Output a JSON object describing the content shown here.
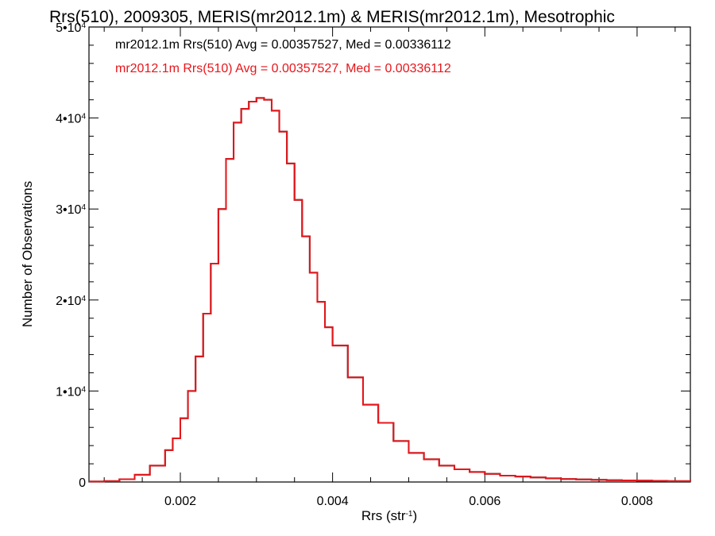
{
  "chart_data": {
    "type": "line",
    "title": "Rrs(510), 2009305, MERIS(mr2012.1m) & MERIS(mr2012.1m), Mesotrophic",
    "xlabel": "Rrs (str",
    "xlabel_sup": "-1",
    "xlabel_end": ")",
    "ylabel": "Number of Observations",
    "xlim": [
      0.0008,
      0.0087
    ],
    "ylim": [
      0,
      50000
    ],
    "x_ticks": [
      0.002,
      0.004,
      0.006,
      0.008
    ],
    "x_tick_labels": [
      "0.002",
      "0.004",
      "0.006",
      "0.008"
    ],
    "y_ticks": [
      0,
      10000,
      20000,
      30000,
      40000,
      50000
    ],
    "y_tick_labels": [
      {
        "base": "0",
        "exp": ""
      },
      {
        "base": "1•10",
        "exp": "4"
      },
      {
        "base": "2•10",
        "exp": "4"
      },
      {
        "base": "3•10",
        "exp": "4"
      },
      {
        "base": "4•10",
        "exp": "4"
      },
      {
        "base": "5•10",
        "exp": "4"
      }
    ],
    "annotations": [
      {
        "text": "mr2012.1m Rrs(510) Avg = 0.00357527, Med = 0.00336112",
        "color": "#000000"
      },
      {
        "text": "mr2012.1m Rrs(510) Avg = 0.00357527, Med = 0.00336112",
        "color": "#e8161b"
      }
    ],
    "series": [
      {
        "style": "step",
        "color": "#000000",
        "x": [
          0.0008,
          0.001,
          0.0012,
          0.0014,
          0.0016,
          0.0018,
          0.0019,
          0.002,
          0.0021,
          0.0022,
          0.0023,
          0.0024,
          0.0025,
          0.0026,
          0.0027,
          0.0028,
          0.0029,
          0.003,
          0.0031,
          0.0032,
          0.0033,
          0.0034,
          0.0035,
          0.0036,
          0.0037,
          0.0038,
          0.0039,
          0.004,
          0.0042,
          0.0044,
          0.0046,
          0.0048,
          0.005,
          0.0052,
          0.0054,
          0.0056,
          0.0058,
          0.006,
          0.0062,
          0.0064,
          0.0066,
          0.0068,
          0.007,
          0.0072,
          0.0074,
          0.0076,
          0.0078,
          0.008,
          0.0082,
          0.0084,
          0.0087
        ],
        "y": [
          50,
          100,
          300,
          800,
          1800,
          3500,
          4800,
          7000,
          10000,
          13800,
          18500,
          24000,
          30000,
          35500,
          39500,
          41000,
          41800,
          42200,
          42000,
          40800,
          38500,
          35000,
          31000,
          27000,
          23000,
          19800,
          17000,
          15000,
          11500,
          8500,
          6500,
          4500,
          3200,
          2500,
          1800,
          1400,
          1100,
          900,
          700,
          600,
          500,
          400,
          330,
          280,
          240,
          200,
          170,
          150,
          120,
          100,
          80
        ]
      },
      {
        "style": "step",
        "color": "#e8161b",
        "x": [
          0.0008,
          0.001,
          0.0012,
          0.0014,
          0.0016,
          0.0018,
          0.0019,
          0.002,
          0.0021,
          0.0022,
          0.0023,
          0.0024,
          0.0025,
          0.0026,
          0.0027,
          0.0028,
          0.0029,
          0.003,
          0.0031,
          0.0032,
          0.0033,
          0.0034,
          0.0035,
          0.0036,
          0.0037,
          0.0038,
          0.0039,
          0.004,
          0.0042,
          0.0044,
          0.0046,
          0.0048,
          0.005,
          0.0052,
          0.0054,
          0.0056,
          0.0058,
          0.006,
          0.0062,
          0.0064,
          0.0066,
          0.0068,
          0.007,
          0.0072,
          0.0074,
          0.0076,
          0.0078,
          0.008,
          0.0082,
          0.0084,
          0.0087
        ],
        "y": [
          50,
          100,
          300,
          800,
          1800,
          3500,
          4800,
          7000,
          10000,
          13800,
          18500,
          24000,
          30000,
          35500,
          39500,
          41000,
          41800,
          42200,
          42000,
          40800,
          38500,
          35000,
          31000,
          27000,
          23000,
          19800,
          17000,
          15000,
          11500,
          8500,
          6500,
          4500,
          3200,
          2500,
          1800,
          1400,
          1100,
          900,
          700,
          600,
          500,
          400,
          330,
          280,
          240,
          200,
          170,
          150,
          120,
          100,
          80
        ]
      }
    ],
    "grid": false,
    "legend": "none"
  }
}
